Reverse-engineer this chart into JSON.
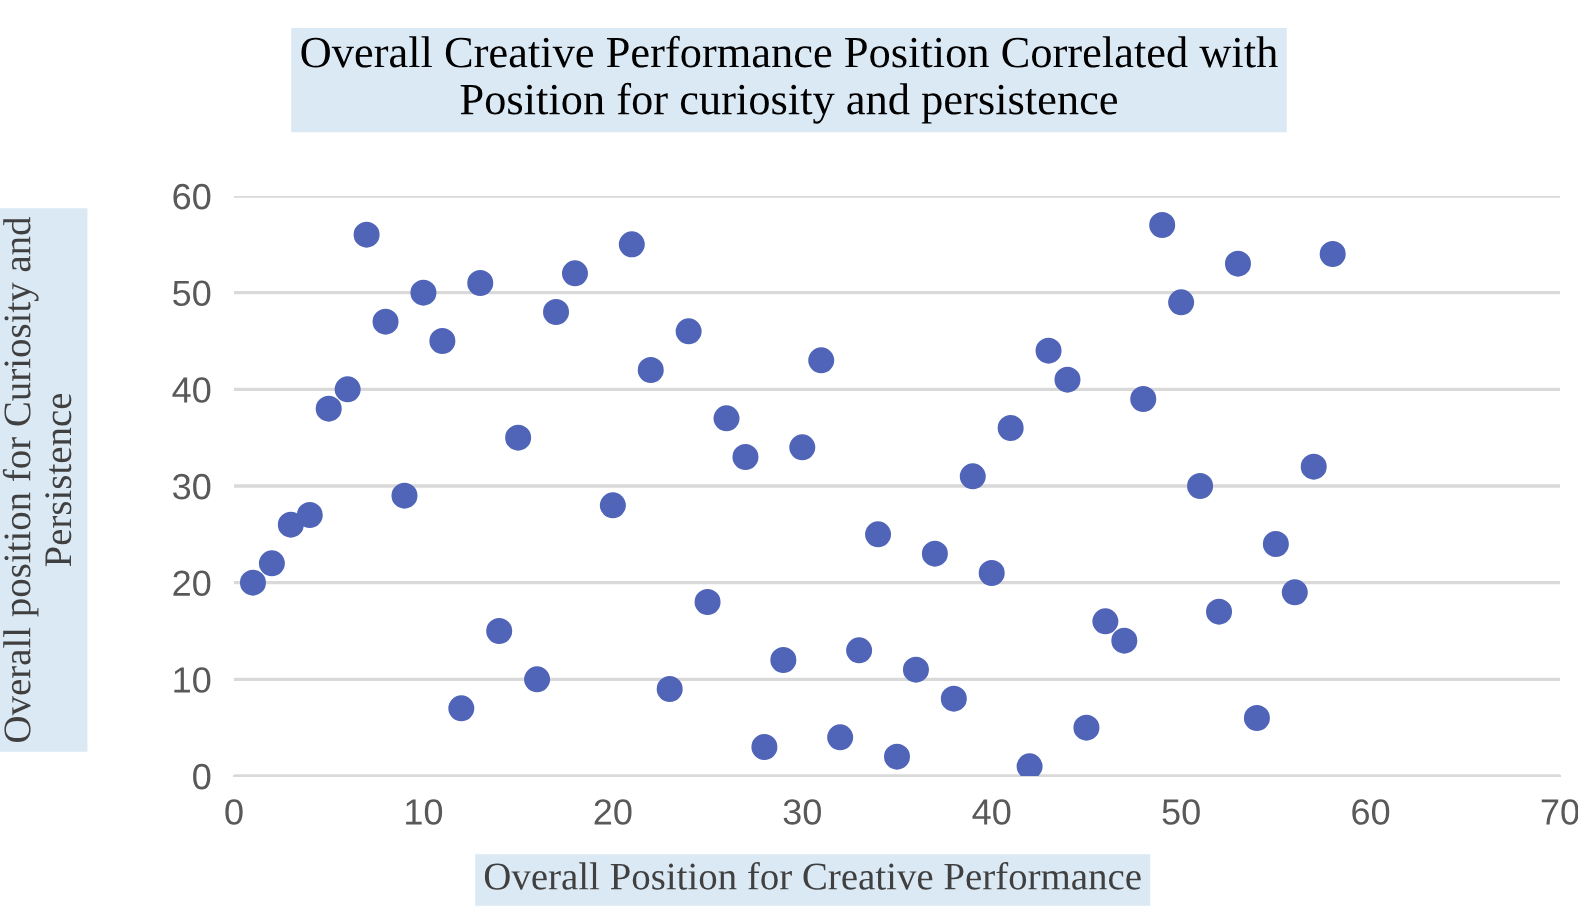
{
  "chart_data": {
    "type": "scatter",
    "title": "Overall Creative Performance Position Correlated with\nPosition for curiosity and persistence",
    "xlabel": "Overall Position for Creative Performance",
    "ylabel": "Overall position for Curiosity and\nPersistence",
    "x": [
      1,
      2,
      3,
      4,
      5,
      6,
      7,
      8,
      9,
      10,
      11,
      12,
      13,
      14,
      15,
      16,
      17,
      18,
      20,
      21,
      22,
      23,
      24,
      25,
      26,
      27,
      28,
      29,
      30,
      31,
      32,
      33,
      34,
      35,
      36,
      37,
      38,
      39,
      40,
      41,
      42,
      43,
      44,
      45,
      46,
      47,
      48,
      49,
      50,
      51,
      52,
      53,
      54,
      55,
      56,
      57,
      58
    ],
    "series": [
      {
        "color": "#5064b8",
        "values": [
          20,
          22,
          26,
          27,
          38,
          40,
          56,
          47,
          29,
          50,
          45,
          7,
          51,
          15,
          35,
          10,
          48,
          52,
          28,
          55,
          42,
          9,
          46,
          18,
          37,
          33,
          3,
          12,
          34,
          43,
          4,
          13,
          25,
          2,
          11,
          23,
          8,
          31,
          21,
          36,
          1,
          44,
          41,
          5,
          16,
          14,
          39,
          57,
          49,
          30,
          17,
          53,
          6,
          24,
          19,
          32,
          54
        ]
      }
    ],
    "xlim": [
      0,
      70
    ],
    "xticks": [
      0,
      10,
      20,
      30,
      40,
      50,
      60,
      70
    ],
    "ylim": [
      0,
      60
    ],
    "yticks": [
      0,
      10,
      20,
      30,
      40,
      50,
      60
    ],
    "grid": "y",
    "marker": "circle",
    "legend": false
  }
}
